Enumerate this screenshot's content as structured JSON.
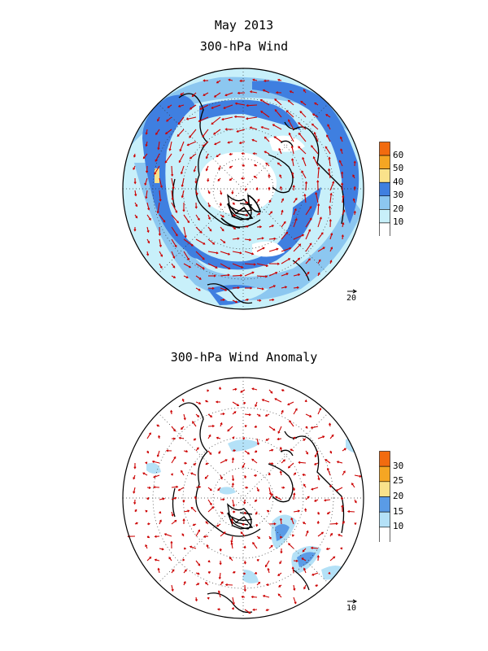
{
  "titles": {
    "date": "May 2013",
    "top": "300-hPa Wind",
    "bottom": "300-hPa Wind Anomaly"
  },
  "top_panel": {
    "colorbar_labels": [
      "60",
      "50",
      "40",
      "30",
      "20",
      "10"
    ],
    "colorbar_colors": [
      "#f26b0f",
      "#f5a623",
      "#fae28b",
      "#3f7fe0",
      "#8cc7f0",
      "#c8f0fa",
      "#ffffff"
    ],
    "reference_vector": "20"
  },
  "bottom_panel": {
    "colorbar_labels": [
      "30",
      "25",
      "20",
      "15",
      "10"
    ],
    "colorbar_colors": [
      "#f26b0f",
      "#f5a623",
      "#fae28b",
      "#5a9be6",
      "#b4e1f7",
      "#ffffff"
    ],
    "reference_vector": "10"
  },
  "colors": {
    "vector": "#cc0000",
    "coastline": "#000000"
  }
}
